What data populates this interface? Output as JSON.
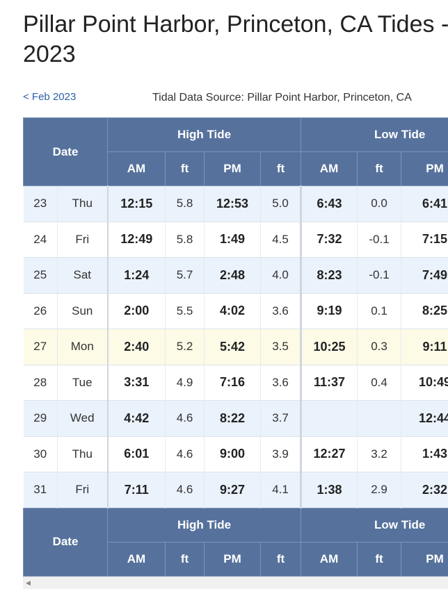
{
  "page": {
    "title": "Pillar Point Harbor, Princeton, CA Tides - 2023",
    "prev_link": "< Feb 2023",
    "source": "Tidal Data Source: Pillar Point Harbor, Princeton, CA"
  },
  "table": {
    "header": {
      "date": "Date",
      "high": "High Tide",
      "low": "Low Tide",
      "am": "AM",
      "ft": "ft",
      "pm": "PM"
    },
    "rows": [
      {
        "date": "23",
        "day": "Thu",
        "h_am": "12:15",
        "h_am_ft": "5.8",
        "h_pm": "12:53",
        "h_pm_ft": "5.0",
        "l_am": "6:43",
        "l_am_ft": "0.0",
        "l_pm": "6:41",
        "style": "blue"
      },
      {
        "date": "24",
        "day": "Fri",
        "h_am": "12:49",
        "h_am_ft": "5.8",
        "h_pm": "1:49",
        "h_pm_ft": "4.5",
        "l_am": "7:32",
        "l_am_ft": "-0.1",
        "l_pm": "7:15",
        "style": "white"
      },
      {
        "date": "25",
        "day": "Sat",
        "h_am": "1:24",
        "h_am_ft": "5.7",
        "h_pm": "2:48",
        "h_pm_ft": "4.0",
        "l_am": "8:23",
        "l_am_ft": "-0.1",
        "l_pm": "7:49",
        "style": "blue"
      },
      {
        "date": "26",
        "day": "Sun",
        "h_am": "2:00",
        "h_am_ft": "5.5",
        "h_pm": "4:02",
        "h_pm_ft": "3.6",
        "l_am": "9:19",
        "l_am_ft": "0.1",
        "l_pm": "8:25",
        "style": "white"
      },
      {
        "date": "27",
        "day": "Mon",
        "h_am": "2:40",
        "h_am_ft": "5.2",
        "h_pm": "5:42",
        "h_pm_ft": "3.5",
        "l_am": "10:25",
        "l_am_ft": "0.3",
        "l_pm": "9:11",
        "style": "today"
      },
      {
        "date": "28",
        "day": "Tue",
        "h_am": "3:31",
        "h_am_ft": "4.9",
        "h_pm": "7:16",
        "h_pm_ft": "3.6",
        "l_am": "11:37",
        "l_am_ft": "0.4",
        "l_pm": "10:49",
        "style": "white"
      },
      {
        "date": "29",
        "day": "Wed",
        "h_am": "4:42",
        "h_am_ft": "4.6",
        "h_pm": "8:22",
        "h_pm_ft": "3.7",
        "l_am": "",
        "l_am_ft": "",
        "l_pm": "12:44",
        "style": "blue"
      },
      {
        "date": "30",
        "day": "Thu",
        "h_am": "6:01",
        "h_am_ft": "4.6",
        "h_pm": "9:00",
        "h_pm_ft": "3.9",
        "l_am": "12:27",
        "l_am_ft": "3.2",
        "l_pm": "1:43",
        "style": "white"
      },
      {
        "date": "31",
        "day": "Fri",
        "h_am": "7:11",
        "h_am_ft": "4.6",
        "h_pm": "9:27",
        "h_pm_ft": "4.1",
        "l_am": "1:38",
        "l_am_ft": "2.9",
        "l_pm": "2:32",
        "style": "blue"
      }
    ]
  }
}
